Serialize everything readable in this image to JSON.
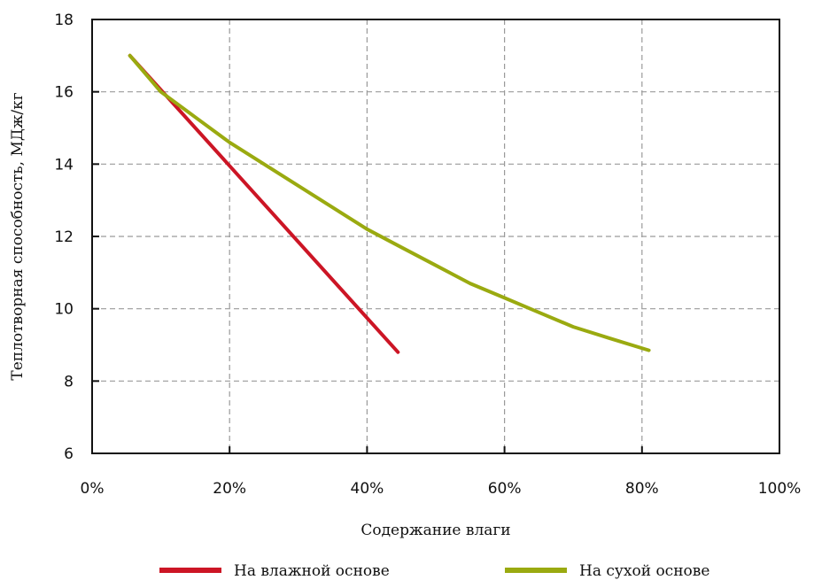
{
  "chart_data": {
    "type": "line",
    "xlabel": "Содержание влаги",
    "ylabel": "Теплотворная способность, МДж/кг",
    "xlim": [
      0,
      100
    ],
    "ylim": [
      6,
      18
    ],
    "x_ticks": [
      "0%",
      "20%",
      "40%",
      "60%",
      "80%",
      "100%"
    ],
    "x_tick_values": [
      0,
      20,
      40,
      60,
      80,
      100
    ],
    "y_ticks": [
      "6",
      "8",
      "10",
      "12",
      "14",
      "16",
      "18"
    ],
    "y_tick_values": [
      6,
      8,
      10,
      12,
      14,
      16,
      18
    ],
    "grid": true,
    "legend_position": "bottom",
    "series": [
      {
        "name": "На влажной основе",
        "color": "#cc1525",
        "x": [
          5.5,
          44.5
        ],
        "y": [
          17.0,
          8.8
        ]
      },
      {
        "name": "На сухой основе",
        "color": "#9aaa10",
        "x": [
          5.5,
          10,
          15,
          20,
          25,
          30,
          35,
          40,
          45,
          50,
          55,
          60,
          65,
          70,
          75,
          81
        ],
        "y": [
          17.0,
          16.0,
          15.3,
          14.6,
          14.0,
          13.4,
          12.8,
          12.2,
          11.7,
          11.2,
          10.7,
          10.3,
          9.9,
          9.5,
          9.2,
          8.85
        ]
      }
    ]
  }
}
